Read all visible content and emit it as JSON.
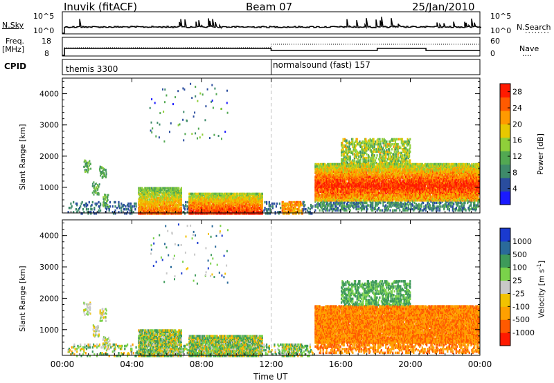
{
  "header": {
    "station": "Inuvik (fitACF)",
    "beam": "Beam 07",
    "date": "25/Jan/2010"
  },
  "colors": {
    "power": [
      "#1a1aff",
      "#2a4d9e",
      "#3e8a6a",
      "#52a852",
      "#8fcf3a",
      "#e8c800",
      "#ff9a00",
      "#ff5a00",
      "#ff1a00"
    ],
    "velocity": [
      "#ff1a00",
      "#ff5a00",
      "#ffa000",
      "#f2c200",
      "#c8c8c8",
      "#7ad24a",
      "#3e9a5a",
      "#2a6a9a",
      "#1a3acf"
    ]
  },
  "top_panels": {
    "nsky_label": "N.Sky",
    "nsearch_label": "N.Search",
    "nsky_ticks": [
      "10^5",
      "10^0"
    ],
    "nsearch_ticks": [
      "10^5",
      "10^0"
    ],
    "freq_label": "Freq.",
    "freq_unit": "[MHz]",
    "freq_ticks": [
      "18",
      "8"
    ],
    "nave_label": "Nave",
    "nave_ticks": [
      "60",
      "0"
    ],
    "cpid_label": "CPID",
    "cpid_modes": [
      "themis 3300",
      "normalsound (fast) 157"
    ]
  },
  "chart_data": [
    {
      "type": "heatmap",
      "title": "Power",
      "xlabel": "",
      "ylabel": "Slant Range [km]",
      "x_ticks": [
        "00:00",
        "04:00",
        "08:00",
        "12:00",
        "16:00",
        "20:00",
        "00:00"
      ],
      "y_ticks": [
        1000,
        2000,
        3000,
        4000
      ],
      "ylim": [
        180,
        4500
      ],
      "colorbar_label": "Power [dB]",
      "colorbar_ticks": [
        4,
        8,
        12,
        16,
        20,
        24,
        28
      ],
      "colorbar_range": [
        0,
        30
      ]
    },
    {
      "type": "heatmap",
      "title": "Velocity",
      "xlabel": "Time UT",
      "ylabel": "Slant Range [km]",
      "x_ticks": [
        "00:00",
        "04:00",
        "08:00",
        "12:00",
        "16:00",
        "20:00",
        "00:00"
      ],
      "y_ticks": [
        1000,
        2000,
        3000,
        4000
      ],
      "ylim": [
        180,
        4500
      ],
      "colorbar_label": "Velocity [m s^-1]",
      "colorbar_ticks": [
        "1000",
        "500",
        "100",
        "25",
        "-25",
        "-100",
        "-500",
        "-1000"
      ]
    }
  ]
}
